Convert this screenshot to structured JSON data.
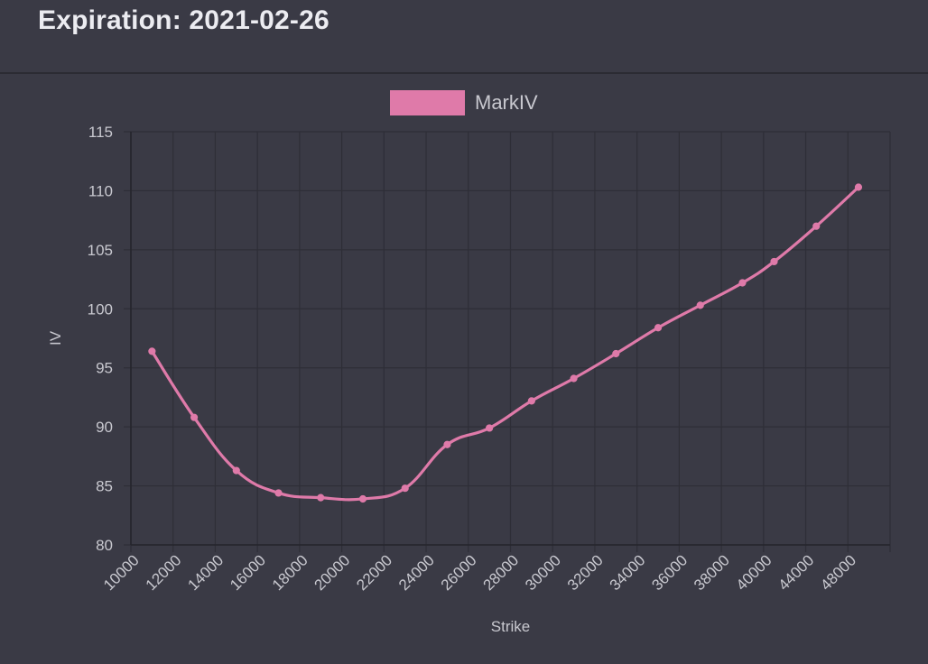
{
  "header": {
    "title": "Expiration: 2021-02-26"
  },
  "colors": {
    "background": "#3a3a45",
    "grid": "#2e2e37",
    "series": "#df7aa9",
    "text": "#c8c8cf"
  },
  "chart_data": {
    "type": "line",
    "title": "",
    "xlabel": "Strike",
    "ylabel": "IV",
    "ylim": [
      80,
      115
    ],
    "yticks": [
      80,
      85,
      90,
      95,
      100,
      105,
      110,
      115
    ],
    "categories": [
      "10000",
      "12000",
      "14000",
      "16000",
      "18000",
      "20000",
      "22000",
      "24000",
      "26000",
      "28000",
      "30000",
      "32000",
      "34000",
      "36000",
      "38000",
      "40000",
      "44000",
      "48000"
    ],
    "grid": true,
    "legend_position": "top-center",
    "series": [
      {
        "name": "MarkIV",
        "points": [
          {
            "x": 11000,
            "y": 96.4
          },
          {
            "x": 13000,
            "y": 90.8
          },
          {
            "x": 15000,
            "y": 86.3
          },
          {
            "x": 17000,
            "y": 84.4
          },
          {
            "x": 19000,
            "y": 84.0
          },
          {
            "x": 21000,
            "y": 83.9
          },
          {
            "x": 23000,
            "y": 84.8
          },
          {
            "x": 25000,
            "y": 88.5
          },
          {
            "x": 27000,
            "y": 89.9
          },
          {
            "x": 29000,
            "y": 92.2
          },
          {
            "x": 31000,
            "y": 94.1
          },
          {
            "x": 33000,
            "y": 96.2
          },
          {
            "x": 35000,
            "y": 98.4
          },
          {
            "x": 37000,
            "y": 100.3
          },
          {
            "x": 39000,
            "y": 102.2
          },
          {
            "x": 41000,
            "y": 104.0
          },
          {
            "x": 45000,
            "y": 107.0
          },
          {
            "x": 49000,
            "y": 110.3
          }
        ]
      }
    ]
  }
}
